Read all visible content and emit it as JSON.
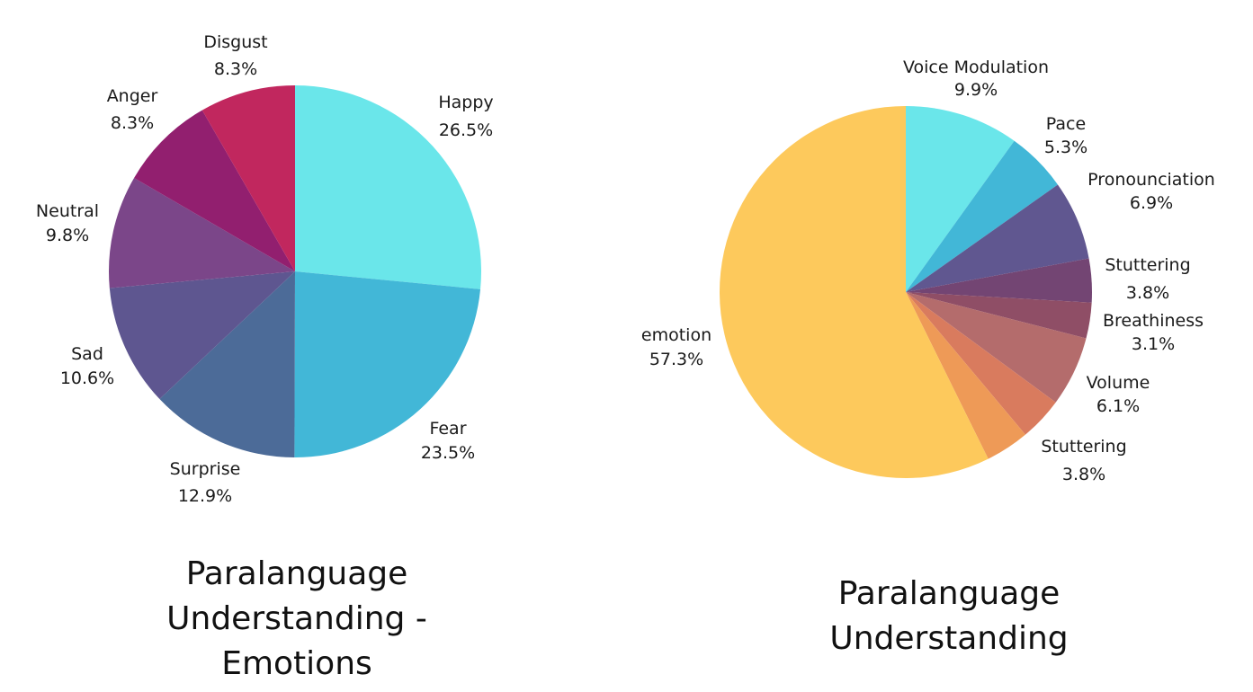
{
  "chart_data": [
    {
      "type": "pie",
      "title": "Paralanguage Understanding - Emotions",
      "title_lines": [
        "Paralanguage",
        "Understanding -",
        "Emotions"
      ],
      "slices": [
        {
          "name": "Happy",
          "value": 26.5,
          "label": "26.5%",
          "color": "#6AE6EA"
        },
        {
          "name": "Fear",
          "value": 23.5,
          "label": "23.5%",
          "color": "#42B7D7"
        },
        {
          "name": "Surprise",
          "value": 12.9,
          "label": "12.9%",
          "color": "#4C6B98"
        },
        {
          "name": "Sad",
          "value": 10.6,
          "label": "10.6%",
          "color": "#5E5690"
        },
        {
          "name": "Neutral",
          "value": 9.8,
          "label": "9.8%",
          "color": "#7B4689"
        },
        {
          "name": "Anger",
          "value": 8.3,
          "label": "8.3%",
          "color": "#921F6F"
        },
        {
          "name": "Disgust",
          "value": 8.3,
          "label": "8.3%",
          "color": "#C1275E"
        }
      ]
    },
    {
      "type": "pie",
      "title": "Paralanguage Understanding",
      "title_lines": [
        "Paralanguage",
        "Understanding"
      ],
      "slices": [
        {
          "name": "Voice Modulation",
          "value": 9.9,
          "label": "9.9%",
          "color": "#6AE6EA"
        },
        {
          "name": "Pace",
          "value": 5.3,
          "label": "5.3%",
          "color": "#42B7D7"
        },
        {
          "name": "Pronounciation",
          "value": 6.9,
          "label": "6.9%",
          "color": "#605790"
        },
        {
          "name": "Stuttering",
          "value": 3.8,
          "label": "3.8%",
          "color": "#734573"
        },
        {
          "name": "Breathiness",
          "value": 3.1,
          "label": "3.1%",
          "color": "#8F4E66"
        },
        {
          "name": "Volume",
          "value": 6.1,
          "label": "6.1%",
          "color": "#B46C6C"
        },
        {
          "name": "Stuttering",
          "value": 3.8,
          "label": "3.8%",
          "color": "#D97B5E"
        },
        {
          "name": "",
          "value": 3.8,
          "label": "",
          "color": "#EE9A57"
        },
        {
          "name": "emotion",
          "value": 57.3,
          "label": "57.3%",
          "color": "#FDC95C"
        }
      ]
    }
  ]
}
